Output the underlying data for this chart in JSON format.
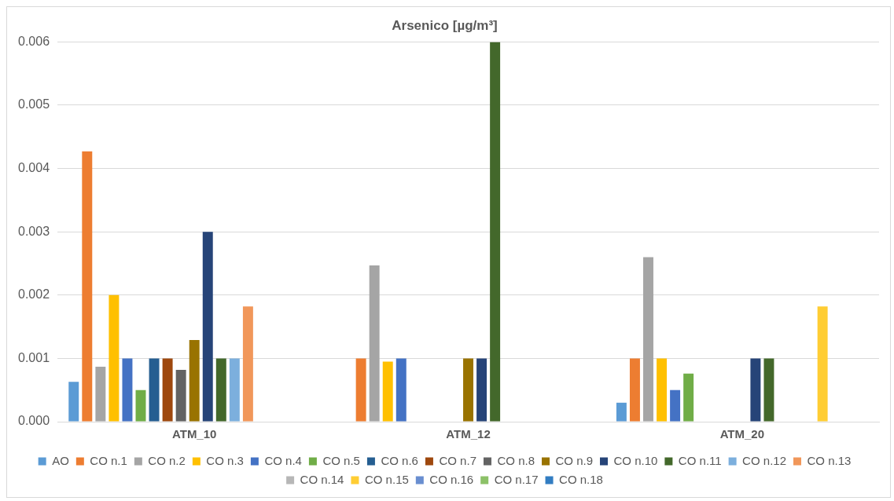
{
  "chart_data": {
    "type": "bar",
    "title": "Arsenico [µg/m³]",
    "categories": [
      "ATM_10",
      "ATM_12",
      "ATM_20"
    ],
    "series": [
      {
        "name": "AO",
        "color": "#5b9bd5",
        "values": [
          0.00063,
          null,
          0.0003
        ]
      },
      {
        "name": "CO n.1",
        "color": "#ed7d31",
        "values": [
          0.00427,
          0.001,
          0.001
        ]
      },
      {
        "name": "CO n.2",
        "color": "#a5a5a5",
        "values": [
          0.00087,
          0.00247,
          0.0026
        ]
      },
      {
        "name": "CO n.3",
        "color": "#ffc000",
        "values": [
          0.002,
          0.00095,
          0.001
        ]
      },
      {
        "name": "CO n.4",
        "color": "#4472c4",
        "values": [
          0.001,
          0.001,
          0.0005
        ]
      },
      {
        "name": "CO n.5",
        "color": "#70ad47",
        "values": [
          0.0005,
          null,
          0.00076
        ]
      },
      {
        "name": "CO n.6",
        "color": "#255e91",
        "values": [
          0.001,
          null,
          null
        ]
      },
      {
        "name": "CO n.7",
        "color": "#9e480e",
        "values": [
          0.001,
          null,
          null
        ]
      },
      {
        "name": "CO n.8",
        "color": "#636363",
        "values": [
          0.00082,
          null,
          null
        ]
      },
      {
        "name": "CO n.9",
        "color": "#997300",
        "values": [
          0.00129,
          0.001,
          null
        ]
      },
      {
        "name": "CO n.10",
        "color": "#264478",
        "values": [
          0.003,
          0.001,
          0.001
        ]
      },
      {
        "name": "CO n.11",
        "color": "#43682b",
        "values": [
          0.001,
          0.006,
          0.001
        ]
      },
      {
        "name": "CO n.12",
        "color": "#7cafdd",
        "values": [
          0.001,
          null,
          null
        ]
      },
      {
        "name": "CO n.13",
        "color": "#f1975a",
        "values": [
          0.00182,
          null,
          null
        ]
      },
      {
        "name": "CO n.14",
        "color": "#b7b7b7",
        "values": [
          null,
          null,
          null
        ]
      },
      {
        "name": "CO n.15",
        "color": "#ffcd33",
        "values": [
          null,
          null,
          0.00182
        ]
      },
      {
        "name": "CO n.16",
        "color": "#698ed0",
        "values": [
          null,
          null,
          null
        ]
      },
      {
        "name": "CO n.17",
        "color": "#8cc168",
        "values": [
          null,
          null,
          null
        ]
      },
      {
        "name": "CO n.18",
        "color": "#327dc2",
        "values": [
          null,
          null,
          null
        ]
      }
    ],
    "ylim": [
      0,
      0.006
    ],
    "yticks": [
      {
        "value": 0,
        "label": "0.000"
      },
      {
        "value": 0.001,
        "label": "0.001"
      },
      {
        "value": 0.002,
        "label": "0.002"
      },
      {
        "value": 0.003,
        "label": "0.003"
      },
      {
        "value": 0.004,
        "label": "0.004"
      },
      {
        "value": 0.005,
        "label": "0.005"
      },
      {
        "value": 0.006,
        "label": "0.006"
      }
    ],
    "grid": "y",
    "legend": "bottom"
  }
}
